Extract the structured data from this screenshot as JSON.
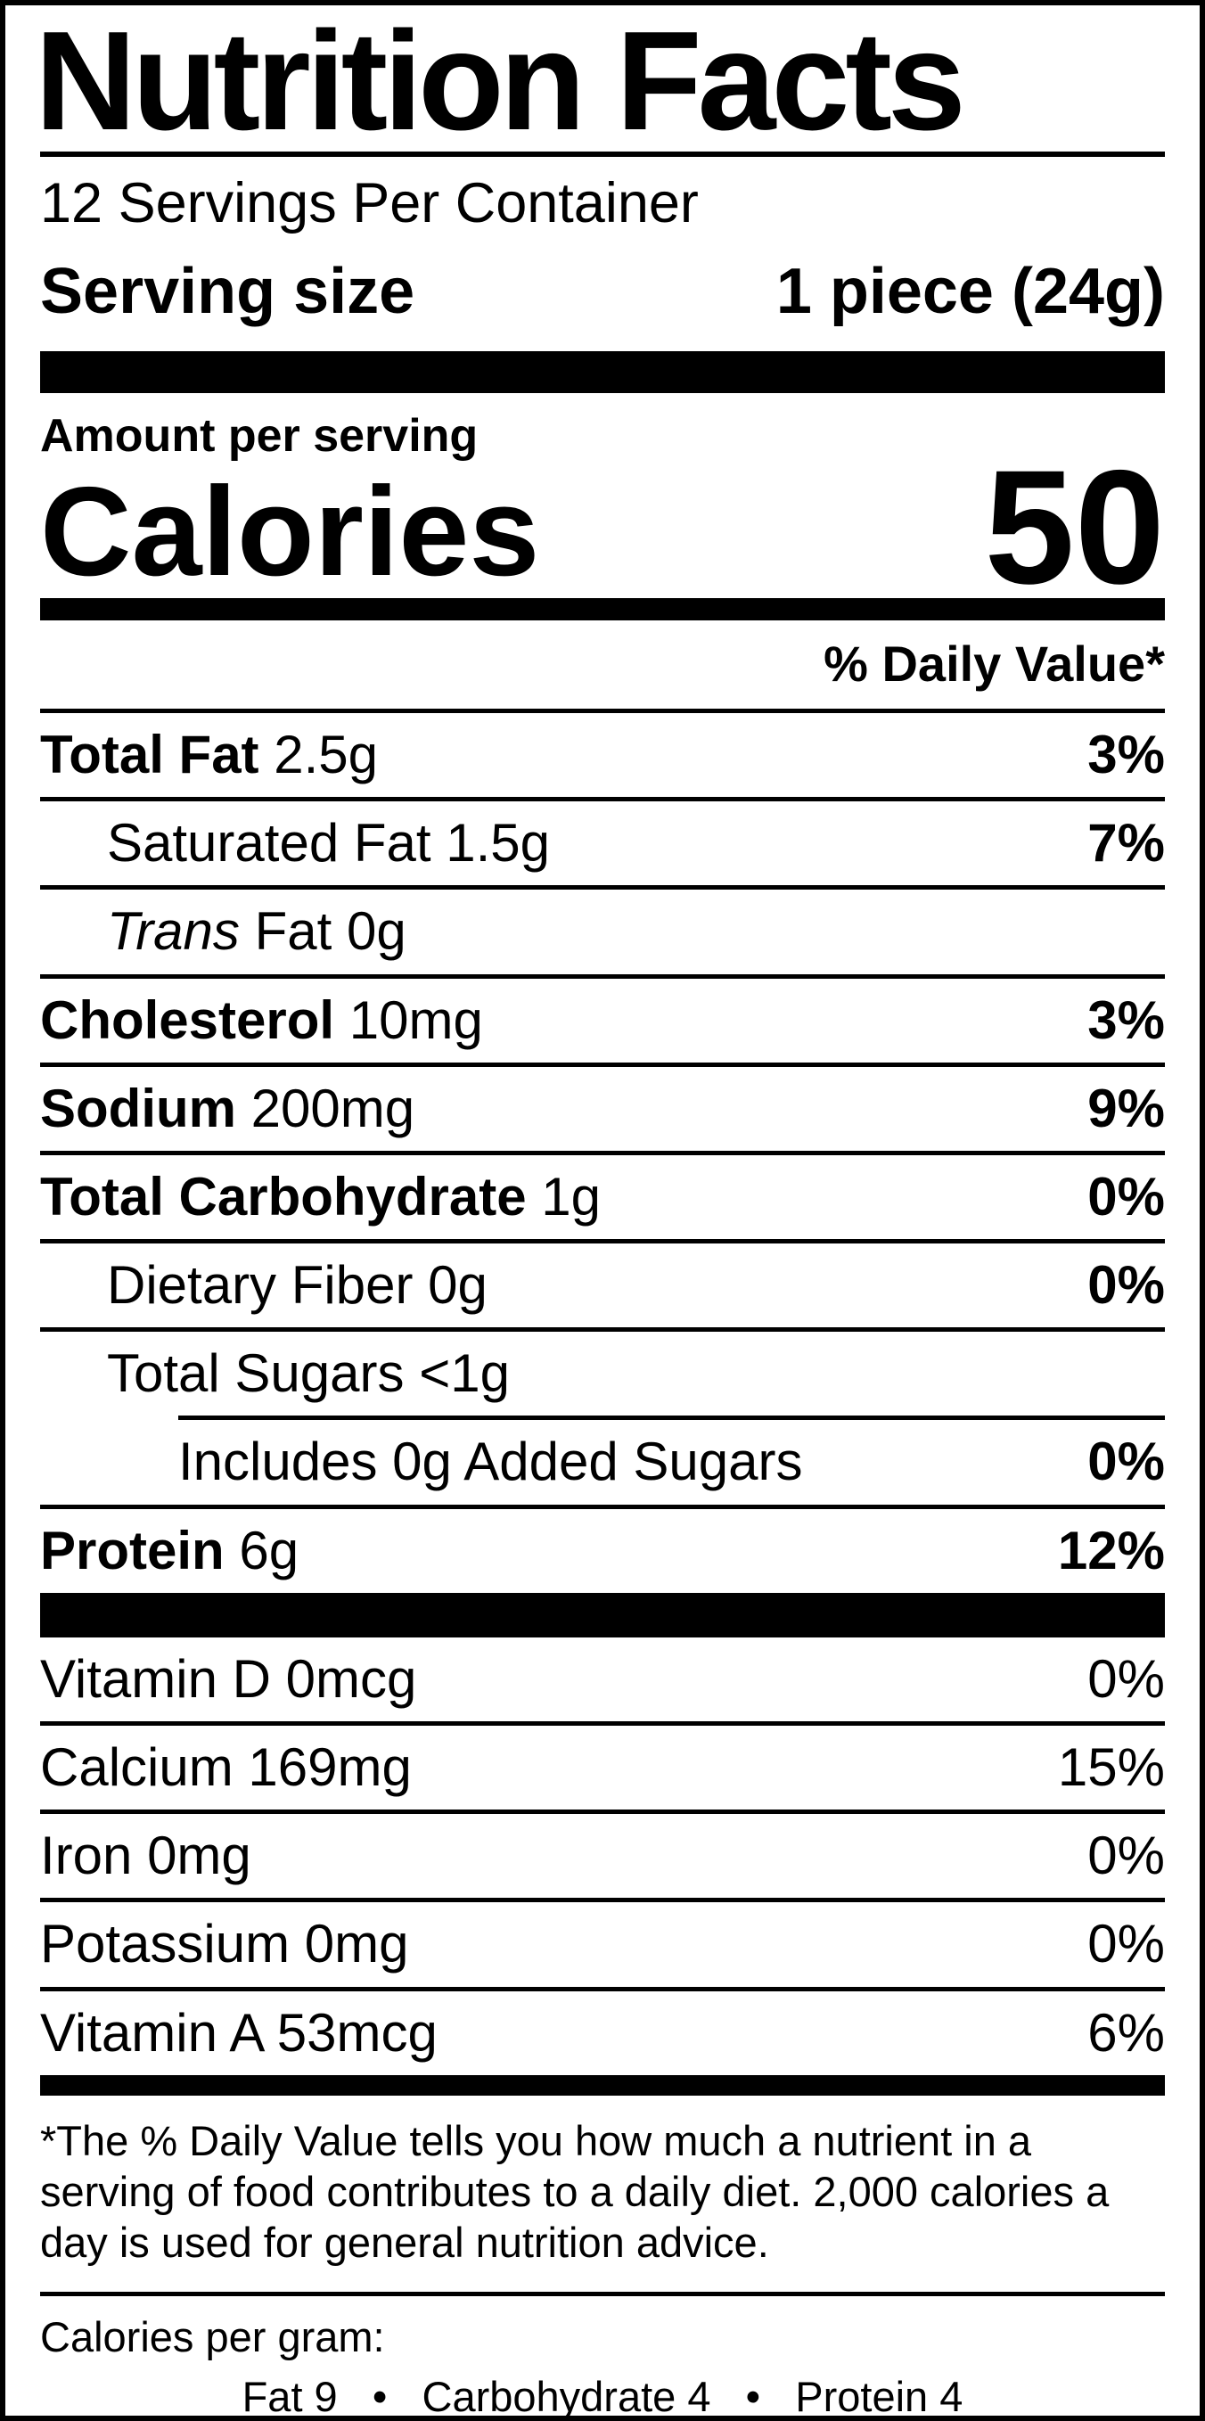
{
  "header": {
    "title": "Nutrition Facts",
    "servings_per_container": "12 Servings Per Container",
    "serving_size_label": "Serving size",
    "serving_size_value": "1 piece (24g)"
  },
  "calories": {
    "amount_per_serving": "Amount per serving",
    "label": "Calories",
    "value": "50"
  },
  "daily_value_header": "% Daily Value*",
  "nutrients": [
    {
      "name": "Total Fat",
      "amount": "2.5g",
      "dv": "3%"
    },
    {
      "name": "Saturated Fat",
      "amount": "1.5g",
      "dv": "7%"
    },
    {
      "name_italic": "Trans",
      "name": "Fat",
      "amount": "0g",
      "dv": ""
    },
    {
      "name": "Cholesterol",
      "amount": "10mg",
      "dv": "3%"
    },
    {
      "name": "Sodium",
      "amount": "200mg",
      "dv": "9%"
    },
    {
      "name": "Total Carbohydrate",
      "amount": "1g",
      "dv": "0%"
    },
    {
      "name": "Dietary Fiber",
      "amount": "0g",
      "dv": "0%"
    },
    {
      "name": "Total Sugars",
      "amount": "<1g",
      "dv": ""
    },
    {
      "name": "Includes 0g Added Sugars",
      "amount": "",
      "dv": "0%"
    },
    {
      "name": "Protein",
      "amount": "6g",
      "dv": "12%"
    }
  ],
  "vitamins": [
    {
      "name": "Vitamin D",
      "amount": "0mcg",
      "dv": "0%"
    },
    {
      "name": "Calcium",
      "amount": "169mg",
      "dv": "15%"
    },
    {
      "name": "Iron",
      "amount": "0mg",
      "dv": "0%"
    },
    {
      "name": "Potassium",
      "amount": "0mg",
      "dv": "0%"
    },
    {
      "name": "Vitamin A",
      "amount": "53mcg",
      "dv": "6%"
    }
  ],
  "footnote": "*The % Daily Value tells you how much a nutrient in a serving of food contributes to a daily diet. 2,000 calories a day is used for general nutrition advice.",
  "calories_per_gram": {
    "label": "Calories per gram:",
    "values": "Fat 9   •   Carbohydrate 4   •   Protein 4"
  },
  "colors": {
    "text": "#000000",
    "background": "#ffffff"
  }
}
